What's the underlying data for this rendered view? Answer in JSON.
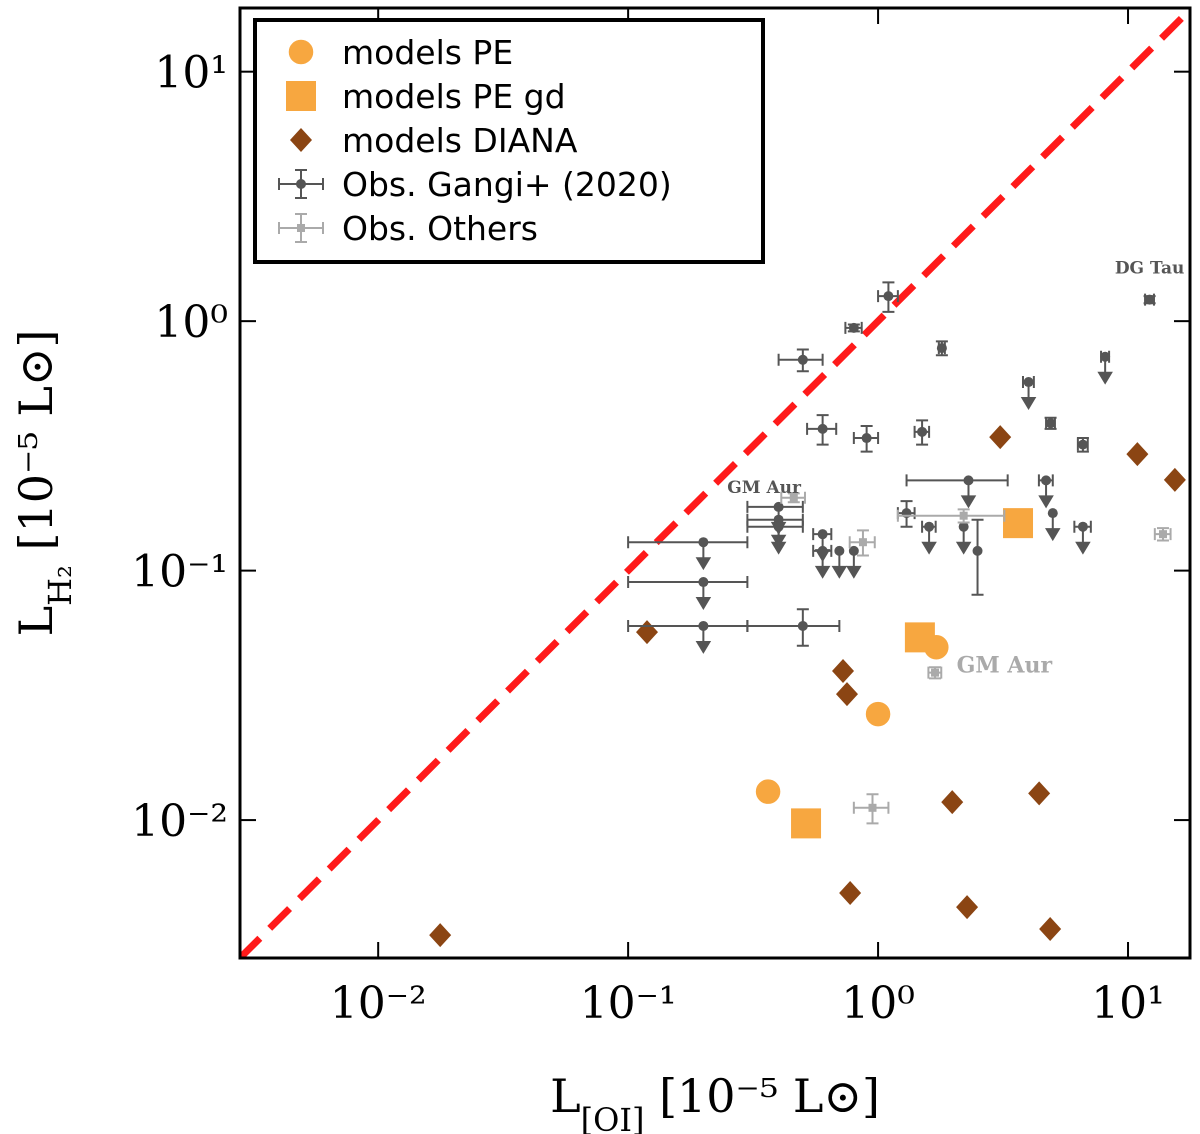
{
  "chart_data": {
    "type": "scatter",
    "xlabel": [
      "L",
      "[OI]",
      " [10⁻⁵ L⊙]"
    ],
    "ylabel": [
      "L",
      "H₂",
      " [10⁻⁵ L⊙]"
    ],
    "xscale": "log",
    "yscale": "log",
    "xlim": [
      0.0028,
      17.7
    ],
    "ylim": [
      0.0028,
      18
    ],
    "xticks": [
      {
        "value": 0.01,
        "label": "10⁻²"
      },
      {
        "value": 0.1,
        "label": "10⁻¹"
      },
      {
        "value": 1,
        "label": "10⁰"
      },
      {
        "value": 10,
        "label": "10¹"
      }
    ],
    "yticks": [
      {
        "value": 0.01,
        "label": "10⁻²"
      },
      {
        "value": 0.1,
        "label": "10⁻¹"
      },
      {
        "value": 1,
        "label": "10⁰"
      },
      {
        "value": 10,
        "label": "10¹"
      }
    ],
    "legend": "upper left",
    "reference_line": {
      "color": "#ff1a1a",
      "style": "dashed"
    },
    "series": [
      {
        "name": "models PE",
        "marker": "circle",
        "color": "#f7a740",
        "x": [
          0.363,
          1.0,
          1.71
        ],
        "values": [
          0.013,
          0.0266,
          0.0493
        ]
      },
      {
        "name": "models PE gd",
        "marker": "square",
        "color": "#f7a740",
        "x": [
          0.515,
          1.47,
          3.63
        ],
        "values": [
          0.0097,
          0.054,
          0.155
        ]
      },
      {
        "name": "models DIANA",
        "marker": "diamond",
        "color": "#8b4513",
        "x": [
          0.0177,
          0.119,
          0.724,
          0.751,
          0.773,
          1.98,
          2.27,
          3.08,
          4.41,
          4.88,
          10.9,
          15.4
        ],
        "values": [
          0.00346,
          0.0567,
          0.0396,
          0.032,
          0.0051,
          0.0118,
          0.00448,
          0.343,
          0.0128,
          0.00366,
          0.293,
          0.231
        ]
      },
      {
        "name": "Obs. Gangi+ (2020)",
        "marker": "errorbar",
        "color": "#555555",
        "x": [
          1.1,
          0.8,
          1.8,
          0.5,
          4.0,
          8.1,
          4.9,
          12.2,
          0.6,
          0.9,
          1.5,
          6.6,
          2.3,
          4.7,
          1.3,
          0.2,
          0.2,
          0.2,
          0.5,
          0.4,
          0.4,
          0.4,
          0.6,
          0.6,
          0.7,
          0.8,
          1.6,
          2.2,
          2.5,
          5.0,
          6.6
        ],
        "values": [
          1.26,
          0.94,
          0.78,
          0.7,
          0.57,
          0.72,
          0.39,
          1.22,
          0.37,
          0.34,
          0.36,
          0.32,
          0.23,
          0.23,
          0.17,
          0.13,
          0.09,
          0.06,
          0.06,
          0.18,
          0.16,
          0.15,
          0.14,
          0.12,
          0.12,
          0.12,
          0.15,
          0.15,
          0.12,
          0.17,
          0.15
        ],
        "xerr": [
          0.1,
          0.06,
          0.05,
          0.1,
          0.2,
          0.3,
          0.2,
          0.5,
          0.08,
          0.1,
          0.1,
          0.3,
          1.0,
          0.3,
          0.1,
          0.1,
          0.1,
          0.1,
          0.2,
          0.1,
          0.1,
          0.1,
          0.05,
          0.05,
          0,
          0,
          0.1,
          0,
          0,
          0,
          0.5
        ],
        "yerr": [
          0.17,
          0.03,
          0.05,
          0.07,
          0,
          0,
          0.02,
          0.04,
          0.05,
          0.04,
          0.04,
          0.02,
          0,
          0,
          0.02,
          0,
          0,
          0,
          0.01,
          0,
          0,
          0,
          0,
          0,
          0,
          0,
          0,
          0,
          0.04,
          0,
          0
        ],
        "upper_limit": [
          false,
          false,
          false,
          false,
          true,
          true,
          false,
          false,
          false,
          false,
          false,
          false,
          true,
          true,
          false,
          true,
          true,
          true,
          false,
          true,
          true,
          true,
          true,
          true,
          true,
          true,
          true,
          true,
          false,
          true,
          true
        ]
      },
      {
        "name": "Obs. Others",
        "marker": "errorbar",
        "color": "#aaaaaa",
        "x": [
          0.46,
          0.87,
          1.69,
          0.95,
          2.2,
          13.8
        ],
        "values": [
          0.196,
          0.13,
          0.039,
          0.0112,
          0.166,
          0.14
        ],
        "xerr": [
          0.05,
          0.1,
          0.1,
          0.15,
          1.0,
          1.0
        ],
        "yerr": [
          0.008,
          0.015,
          0.002,
          0.0015,
          0.01,
          0.008
        ],
        "upper_limit": [
          false,
          false,
          false,
          false,
          false,
          false
        ]
      }
    ],
    "annotations": [
      {
        "text": "DG Tau",
        "x": 12.2,
        "y": 1.55,
        "color": "#555555",
        "size": 17
      },
      {
        "text": "GM Aur",
        "x": 0.35,
        "y": 0.205,
        "color": "#555555",
        "size": 17
      },
      {
        "text": "GM Aur",
        "x": 3.2,
        "y": 0.039,
        "color": "#aaaaaa",
        "size": 22
      }
    ]
  }
}
